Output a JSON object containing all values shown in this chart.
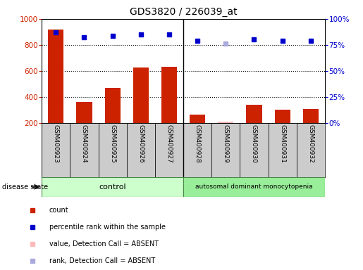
{
  "title": "GDS3820 / 226039_at",
  "samples": [
    "GSM400923",
    "GSM400924",
    "GSM400925",
    "GSM400926",
    "GSM400927",
    "GSM400928",
    "GSM400929",
    "GSM400930",
    "GSM400931",
    "GSM400932"
  ],
  "bar_values": [
    920,
    360,
    470,
    625,
    630,
    265,
    210,
    340,
    300,
    305
  ],
  "bar_absent": [
    false,
    false,
    false,
    false,
    false,
    false,
    true,
    false,
    false,
    false
  ],
  "rank_values": [
    87,
    82,
    84,
    85,
    85,
    79,
    76,
    80,
    79,
    79
  ],
  "rank_absent": [
    false,
    false,
    false,
    false,
    false,
    false,
    true,
    false,
    false,
    false
  ],
  "bar_color_present": "#cc2200",
  "bar_color_absent": "#ffbbbb",
  "rank_color_present": "#0000cc",
  "rank_color_absent": "#aaaadd",
  "ylim_left": [
    200,
    1000
  ],
  "ylim_right": [
    0,
    100
  ],
  "yticks_left": [
    200,
    400,
    600,
    800,
    1000
  ],
  "yticks_right": [
    0,
    25,
    50,
    75,
    100
  ],
  "grid_values": [
    400,
    600,
    800
  ],
  "control_samples": 5,
  "disease_label": "autosomal dominant monocytopenia",
  "control_color": "#ccffcc",
  "disease_color": "#99ee99",
  "label_bg_color": "#cccccc",
  "legend_items": [
    {
      "label": "count",
      "color": "#cc2200"
    },
    {
      "label": "percentile rank within the sample",
      "color": "#0000cc"
    },
    {
      "label": "value, Detection Call = ABSENT",
      "color": "#ffbbbb"
    },
    {
      "label": "rank, Detection Call = ABSENT",
      "color": "#aaaadd"
    }
  ]
}
